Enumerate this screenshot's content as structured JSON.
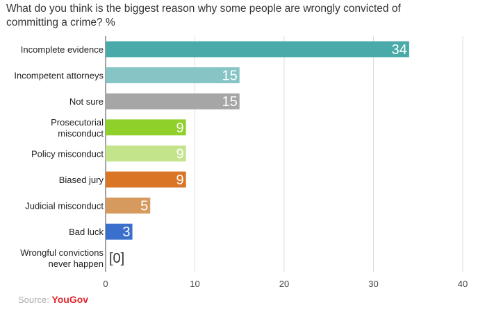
{
  "title": "What do you think is the biggest reason why some people are wrongly convicted of committing a crime? %",
  "source": {
    "prefix": "Source:",
    "brand": "YouGov"
  },
  "colors": {
    "grid": "#dcdcdc",
    "axis": "#444444"
  },
  "chart_data": {
    "type": "bar",
    "orientation": "horizontal",
    "title": "What do you think is the biggest reason why some people are wrongly convicted of committing a crime? %",
    "xlabel": "",
    "ylabel": "",
    "xlim": [
      0,
      40
    ],
    "ticks": [
      0,
      10,
      20,
      30,
      40
    ],
    "grid": true,
    "categories": [
      [
        "Incomplete evidence"
      ],
      [
        "Incompetent attorneys"
      ],
      [
        "Not sure"
      ],
      [
        "Prosecutorial",
        "misconduct"
      ],
      [
        "Policy misconduct"
      ],
      [
        "Biased jury"
      ],
      [
        "Judicial misconduct"
      ],
      [
        "Bad luck"
      ],
      [
        "Wrongful convictions",
        "never happen"
      ]
    ],
    "values": [
      34,
      15,
      15,
      9,
      9,
      9,
      5,
      3,
      0
    ],
    "value_labels": [
      "34",
      "15",
      "15",
      "9",
      "9",
      "9",
      "5",
      "3",
      "[0]"
    ],
    "bar_colors": [
      "#4aaaaa",
      "#86c4c6",
      "#a6a6a6",
      "#8fd12a",
      "#c4e48c",
      "#d97524",
      "#d69a5e",
      "#3a6fcc",
      "#ffffff"
    ],
    "value_label_colors": [
      "#ffffff",
      "#ffffff",
      "#ffffff",
      "#ffffff",
      "#ffffff",
      "#ffffff",
      "#ffffff",
      "#ffffff",
      "#333333"
    ]
  }
}
